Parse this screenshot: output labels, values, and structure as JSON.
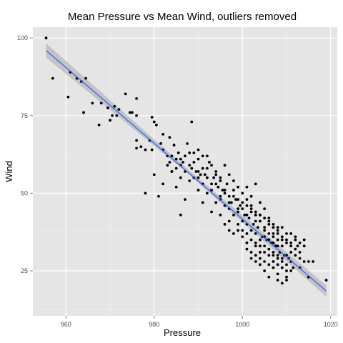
{
  "chart_data": {
    "type": "scatter",
    "title": "Mean Pressure vs Mean Wind, outliers removed",
    "xlabel": "Pressure",
    "ylabel": "Wind",
    "xlim": [
      952.5,
      1021.5
    ],
    "ylim": [
      10.5,
      103.5
    ],
    "x_ticks": [
      960,
      980,
      1000,
      1020
    ],
    "y_ticks": [
      25,
      50,
      75,
      100
    ],
    "grid": true,
    "colors": {
      "panel_background": "#e5e5e5",
      "grid_major": "#ffffff",
      "grid_minor": "#f2f2f2",
      "points": "#000000",
      "fit_line": "#3366ff",
      "confidence_band": "#999999"
    },
    "fit_line": {
      "x": [
        955.5,
        1019
      ],
      "y": [
        96,
        18.5
      ]
    },
    "confidence_band": {
      "x": [
        955.5,
        987,
        1019
      ],
      "upper": [
        98.3,
        58.5,
        20.3
      ],
      "lower": [
        93.7,
        57.1,
        16.7
      ]
    },
    "points": [
      [
        955.5,
        100
      ],
      [
        957,
        87
      ],
      [
        960.5,
        81
      ],
      [
        961,
        89
      ],
      [
        962.5,
        87
      ],
      [
        963.5,
        86
      ],
      [
        964.5,
        87
      ],
      [
        964,
        76
      ],
      [
        966,
        79
      ],
      [
        967.5,
        72
      ],
      [
        968,
        79
      ],
      [
        970,
        73.5
      ],
      [
        969.5,
        77.5
      ],
      [
        971,
        78
      ],
      [
        972,
        77
      ],
      [
        971.5,
        75
      ],
      [
        970.5,
        75
      ],
      [
        973.5,
        82
      ],
      [
        974.5,
        76
      ],
      [
        975,
        76
      ],
      [
        976,
        80.5
      ],
      [
        976,
        75
      ],
      [
        976,
        67
      ],
      [
        976,
        64.5
      ],
      [
        977,
        65
      ],
      [
        978,
        64
      ],
      [
        979,
        67
      ],
      [
        979.5,
        64
      ],
      [
        979.5,
        74.5
      ],
      [
        980,
        73
      ],
      [
        980.5,
        72
      ],
      [
        981.5,
        66
      ],
      [
        982,
        69
      ],
      [
        982,
        64
      ],
      [
        983,
        62
      ],
      [
        983.5,
        68
      ],
      [
        983.5,
        60
      ],
      [
        984,
        57
      ],
      [
        984.5,
        65.5
      ],
      [
        985,
        61
      ],
      [
        985.5,
        63
      ],
      [
        986,
        59
      ],
      [
        986.5,
        60
      ],
      [
        987,
        62
      ],
      [
        987.5,
        66
      ],
      [
        988,
        63
      ],
      [
        988.5,
        73
      ],
      [
        988.5,
        58
      ],
      [
        989,
        63
      ],
      [
        989.5,
        57
      ],
      [
        990,
        61
      ],
      [
        990,
        55
      ],
      [
        990.5,
        56
      ],
      [
        991,
        62
      ],
      [
        991.5,
        56
      ],
      [
        992,
        58
      ],
      [
        992.5,
        60
      ],
      [
        993,
        53
      ],
      [
        993.5,
        55
      ],
      [
        994,
        56
      ],
      [
        994.5,
        52
      ],
      [
        995,
        54
      ],
      [
        995,
        48
      ],
      [
        995.5,
        51
      ],
      [
        996,
        50
      ],
      [
        996.5,
        53
      ],
      [
        997,
        49
      ],
      [
        997,
        45
      ],
      [
        997.5,
        47
      ],
      [
        998,
        51
      ],
      [
        998.5,
        48
      ],
      [
        999,
        44
      ],
      [
        999.5,
        46
      ],
      [
        1000,
        45
      ],
      [
        1000,
        41
      ],
      [
        1000.5,
        43
      ],
      [
        1001,
        46
      ],
      [
        1001,
        40
      ],
      [
        1001.5,
        42
      ],
      [
        1002,
        38
      ],
      [
        1002,
        44
      ],
      [
        1002.5,
        40
      ],
      [
        1003,
        37
      ],
      [
        1003,
        43
      ],
      [
        1003.5,
        39
      ],
      [
        1004,
        35
      ],
      [
        1004,
        41
      ],
      [
        1004.5,
        36
      ],
      [
        1005,
        38
      ],
      [
        1005,
        33
      ],
      [
        1005.5,
        35
      ],
      [
        1006,
        37
      ],
      [
        1006,
        32
      ],
      [
        1006.5,
        34
      ],
      [
        1007,
        30
      ],
      [
        1007,
        36
      ],
      [
        1007.5,
        33
      ],
      [
        1008,
        29
      ],
      [
        1008,
        35
      ],
      [
        1008.5,
        31
      ],
      [
        1009,
        28
      ],
      [
        1009,
        33
      ],
      [
        1009.5,
        30
      ],
      [
        1010,
        27
      ],
      [
        1010,
        34
      ],
      [
        1010.5,
        29
      ],
      [
        1011,
        31
      ],
      [
        1011.5,
        26
      ],
      [
        1012,
        30
      ],
      [
        1012.5,
        33
      ],
      [
        1013,
        29
      ],
      [
        1014,
        28
      ],
      [
        1014,
        35
      ],
      [
        1015,
        28
      ],
      [
        1019,
        22
      ],
      [
        978,
        50
      ],
      [
        980,
        56
      ],
      [
        981,
        49
      ],
      [
        982,
        53
      ],
      [
        984,
        57
      ],
      [
        985,
        52
      ],
      [
        986,
        55
      ],
      [
        987,
        48
      ],
      [
        988,
        54
      ],
      [
        986,
        43
      ],
      [
        990,
        51
      ],
      [
        991,
        47
      ],
      [
        992,
        50
      ],
      [
        993,
        44
      ],
      [
        994,
        47
      ],
      [
        995,
        43
      ],
      [
        996,
        46
      ],
      [
        997,
        41
      ],
      [
        998,
        43
      ],
      [
        999,
        38
      ],
      [
        999,
        48
      ],
      [
        1000,
        36
      ],
      [
        1001,
        34
      ],
      [
        1001,
        52
      ],
      [
        1002,
        31
      ],
      [
        1002,
        49
      ],
      [
        1003,
        28
      ],
      [
        1003,
        53
      ],
      [
        1004,
        27
      ],
      [
        1004,
        47
      ],
      [
        1005,
        25
      ],
      [
        1005,
        45
      ],
      [
        1006,
        23
      ],
      [
        1006,
        42
      ],
      [
        1007,
        26
      ],
      [
        1007,
        40
      ],
      [
        1008,
        24
      ],
      [
        1008,
        38
      ],
      [
        1008,
        22
      ],
      [
        1009,
        21
      ],
      [
        1009,
        39
      ],
      [
        1010,
        23
      ],
      [
        1010,
        22
      ],
      [
        1011,
        25
      ],
      [
        1011,
        37
      ],
      [
        1012,
        36
      ],
      [
        1013,
        34
      ],
      [
        1013,
        26
      ],
      [
        1016,
        28
      ],
      [
        1015,
        23
      ],
      [
        989,
        60
      ],
      [
        990,
        64
      ],
      [
        991,
        58
      ],
      [
        992,
        62
      ],
      [
        993,
        59
      ],
      [
        994,
        57
      ],
      [
        995,
        55
      ],
      [
        996,
        59
      ],
      [
        997,
        56
      ],
      [
        998,
        54
      ],
      [
        999,
        52
      ],
      [
        1000,
        50
      ],
      [
        1001,
        48
      ],
      [
        1002,
        46
      ],
      [
        1003,
        44
      ],
      [
        1004,
        43
      ],
      [
        1005,
        42
      ],
      [
        1006,
        40
      ],
      [
        1007,
        39
      ],
      [
        1008,
        37
      ],
      [
        1009,
        36
      ],
      [
        1010,
        35
      ],
      [
        1011,
        33
      ],
      [
        1012,
        32
      ],
      [
        983,
        59
      ],
      [
        984,
        62
      ],
      [
        985,
        58
      ],
      [
        986,
        61
      ],
      [
        987,
        57
      ],
      [
        988,
        59
      ],
      [
        989,
        55
      ],
      [
        990,
        57
      ],
      [
        991,
        53
      ],
      [
        992,
        55
      ],
      [
        993,
        51
      ],
      [
        994,
        53
      ],
      [
        995,
        49
      ],
      [
        996,
        51
      ],
      [
        997,
        47
      ],
      [
        998,
        49
      ],
      [
        999,
        45
      ],
      [
        1000,
        47
      ],
      [
        1001,
        43
      ],
      [
        1002,
        45
      ],
      [
        1003,
        41
      ],
      [
        1004,
        43
      ],
      [
        1005,
        39
      ],
      [
        1006,
        41
      ],
      [
        1007,
        37
      ],
      [
        1008,
        39
      ],
      [
        1009,
        35
      ],
      [
        1010,
        37
      ],
      [
        1011,
        34
      ],
      [
        1012,
        35
      ],
      [
        1013,
        31
      ],
      [
        1014,
        33
      ],
      [
        996,
        40
      ],
      [
        997,
        38
      ],
      [
        998,
        37
      ],
      [
        999,
        40
      ],
      [
        1000,
        38
      ],
      [
        1001,
        37
      ],
      [
        1002,
        35
      ],
      [
        1003,
        34
      ],
      [
        1004,
        33
      ],
      [
        1005,
        31
      ],
      [
        1006,
        30
      ],
      [
        1007,
        31
      ],
      [
        1008,
        30
      ],
      [
        1009,
        29
      ],
      [
        1010,
        30
      ],
      [
        1011,
        28
      ],
      [
        1001,
        32
      ],
      [
        1002,
        29
      ],
      [
        1003,
        30
      ],
      [
        1004,
        31
      ],
      [
        1005,
        28
      ],
      [
        1006,
        27
      ],
      [
        1007,
        28
      ],
      [
        1008,
        27
      ],
      [
        1009,
        26
      ],
      [
        1010,
        25
      ],
      [
        1003,
        33
      ],
      [
        1004,
        29
      ],
      [
        1005,
        36
      ],
      [
        1006,
        35
      ],
      [
        1007,
        34
      ],
      [
        1008,
        33
      ]
    ]
  }
}
